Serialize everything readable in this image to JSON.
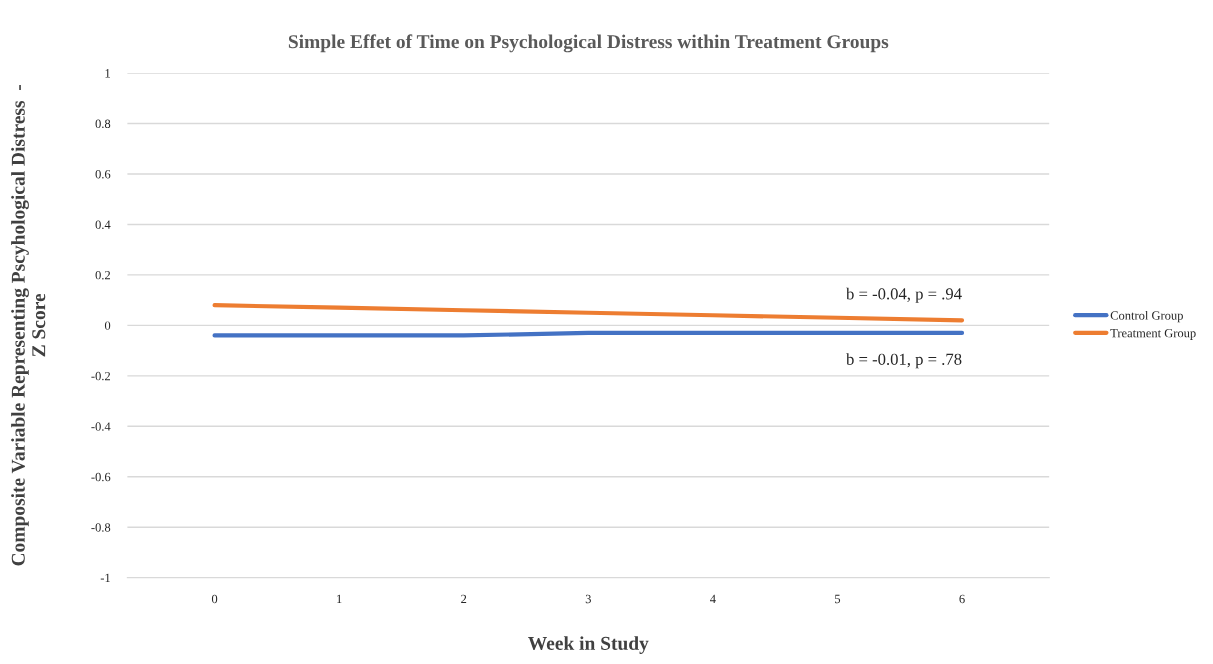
{
  "chart_data": {
    "type": "line",
    "title": "Simple Effet of Time on Psychological Distress within Treatment Groups",
    "xlabel": "Week in Study",
    "ylabel": "Composite Variable Representing Pscyhological Distress  -\nZ Score",
    "categories": [
      "0",
      "1",
      "2",
      "3",
      "4",
      "5",
      "6"
    ],
    "series": [
      {
        "name": "Control Group",
        "color": "#4472c4",
        "values": [
          -0.04,
          -0.04,
          -0.04,
          -0.03,
          -0.03,
          -0.03,
          -0.03
        ]
      },
      {
        "name": "Treatment Group",
        "color": "#ed7d31",
        "values": [
          0.08,
          0.07,
          0.06,
          0.05,
          0.04,
          0.03,
          0.02
        ]
      }
    ],
    "annotations": [
      {
        "text": "b = -0.04, p = .94",
        "x": "6",
        "y": 0.02
      },
      {
        "text": "b = -0.01, p = .78",
        "x": "6",
        "y": -0.03
      }
    ],
    "ylim": [
      -1,
      1
    ],
    "yticks": [
      -1,
      -0.8,
      -0.6,
      -0.4,
      -0.2,
      0,
      0.2,
      0.4,
      0.6,
      0.8,
      1
    ],
    "grid": "y",
    "legend": "right",
    "marker": "none",
    "line_style": "solid"
  }
}
